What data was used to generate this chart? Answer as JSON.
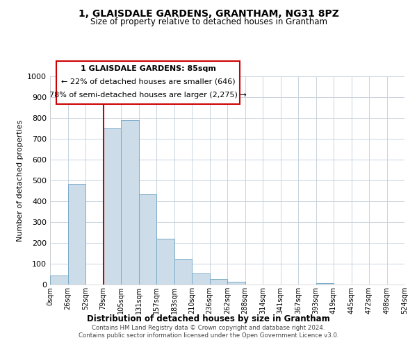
{
  "title": "1, GLAISDALE GARDENS, GRANTHAM, NG31 8PZ",
  "subtitle": "Size of property relative to detached houses in Grantham",
  "xlabel": "Distribution of detached houses by size in Grantham",
  "ylabel": "Number of detached properties",
  "bin_labels": [
    "0sqm",
    "26sqm",
    "52sqm",
    "79sqm",
    "105sqm",
    "131sqm",
    "157sqm",
    "183sqm",
    "210sqm",
    "236sqm",
    "262sqm",
    "288sqm",
    "314sqm",
    "341sqm",
    "367sqm",
    "393sqm",
    "419sqm",
    "445sqm",
    "472sqm",
    "498sqm",
    "524sqm"
  ],
  "bar_heights": [
    45,
    485,
    0,
    750,
    790,
    435,
    220,
    125,
    52,
    28,
    15,
    0,
    0,
    0,
    0,
    8,
    0,
    0,
    0,
    0
  ],
  "bar_color": "#ccdce8",
  "bar_edge_color": "#7aaac8",
  "property_line_x": 3,
  "property_line_color": "#cc0000",
  "ylim": [
    0,
    1000
  ],
  "yticks": [
    0,
    100,
    200,
    300,
    400,
    500,
    600,
    700,
    800,
    900,
    1000
  ],
  "annotation_title": "1 GLAISDALE GARDENS: 85sqm",
  "annotation_line1": "← 22% of detached houses are smaller (646)",
  "annotation_line2": "78% of semi-detached houses are larger (2,275) →",
  "annotation_box_color": "#ffffff",
  "annotation_box_edge": "#cc0000",
  "footer_line1": "Contains HM Land Registry data © Crown copyright and database right 2024.",
  "footer_line2": "Contains public sector information licensed under the Open Government Licence v3.0.",
  "bg_color": "#ffffff",
  "grid_color": "#c8d4de"
}
